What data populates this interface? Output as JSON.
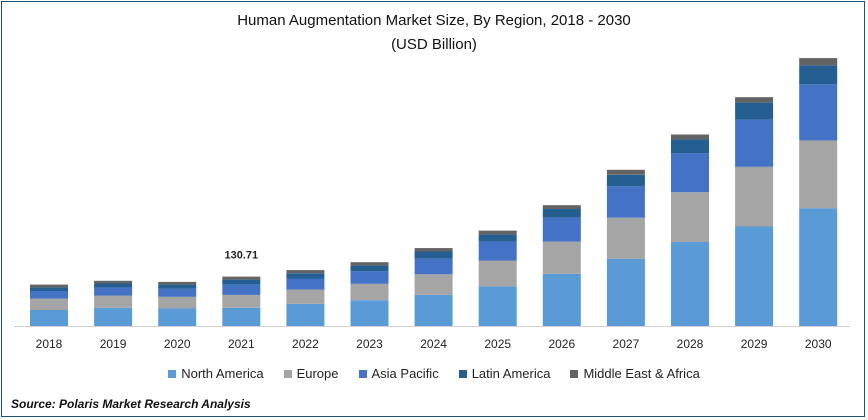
{
  "chart_data": {
    "type": "bar",
    "stacked": true,
    "title": "Human Augmentation Market Size, By Region, 2018 - 2030",
    "subtitle": "(USD Billion)",
    "xlabel": "",
    "ylabel": "",
    "categories": [
      "2018",
      "2019",
      "2020",
      "2021",
      "2022",
      "2023",
      "2024",
      "2025",
      "2026",
      "2027",
      "2028",
      "2029",
      "2030"
    ],
    "series": [
      {
        "name": "North America",
        "color": "#5b9bd5",
        "values": [
          42,
          48,
          46,
          48,
          58,
          68,
          82,
          104,
          137,
          177,
          221,
          262,
          310
        ]
      },
      {
        "name": "Europe",
        "color": "#a5a5a5",
        "values": [
          30,
          32,
          31,
          34,
          38,
          43,
          54,
          68,
          85,
          108,
          131,
          157,
          178
        ]
      },
      {
        "name": "Asia Pacific",
        "color": "#4472c4",
        "values": [
          20,
          21,
          21,
          27,
          29,
          33,
          41,
          50,
          63,
          83,
          103,
          124,
          148
        ]
      },
      {
        "name": "Latin America",
        "color": "#255e91",
        "values": [
          10,
          11,
          11,
          13,
          14,
          15,
          19,
          19,
          23,
          30,
          36,
          45,
          50
        ]
      },
      {
        "name": "Middle East & Africa",
        "color": "#636363",
        "values": [
          7,
          7,
          7,
          8,
          8,
          9,
          9,
          10,
          10,
          13,
          13,
          14,
          19
        ]
      }
    ],
    "data_labels": [
      {
        "category": "2021",
        "text": "130.71"
      }
    ],
    "ylim": [
      0,
      700
    ],
    "legend_position": "bottom",
    "grid": false
  },
  "source_text": "Source: Polaris  Market Research Analysis"
}
